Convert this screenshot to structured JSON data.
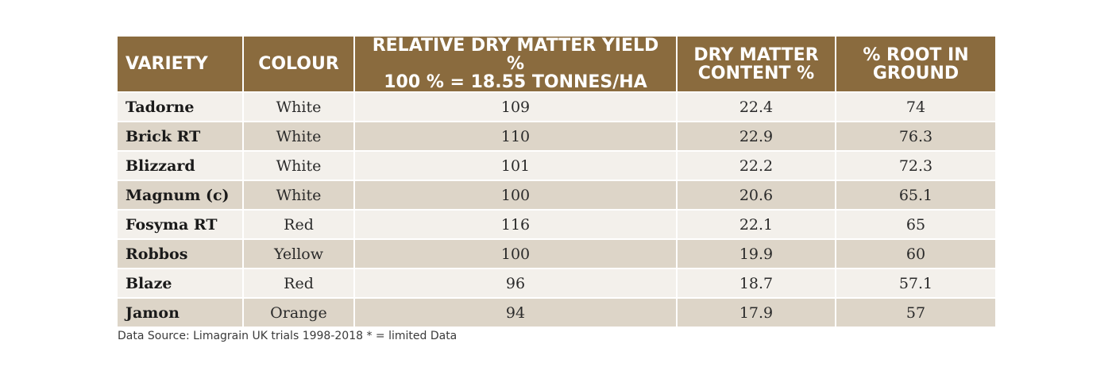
{
  "table": {
    "headers": {
      "variety": "VARIETY",
      "colour": "COLOUR",
      "yield_line1": "RELATIVE DRY MATTER YIELD %",
      "yield_line2": "100 % = 18.55 TONNES/HA",
      "dm_line1": "DRY MATTER",
      "dm_line2": "CONTENT %",
      "root_line1": "% ROOT IN",
      "root_line2": "GROUND"
    },
    "rows": [
      {
        "variety": "Tadorne",
        "colour": "White",
        "yield": "109",
        "dm": "22.4",
        "root": "74"
      },
      {
        "variety": "Brick RT",
        "colour": "White",
        "yield": "110",
        "dm": "22.9",
        "root": "76.3"
      },
      {
        "variety": "Blizzard",
        "colour": "White",
        "yield": "101",
        "dm": "22.2",
        "root": "72.3"
      },
      {
        "variety": "Magnum (c)",
        "colour": "White",
        "yield": "100",
        "dm": "20.6",
        "root": "65.1"
      },
      {
        "variety": "Fosyma RT",
        "colour": "Red",
        "yield": "116",
        "dm": "22.1",
        "root": "65"
      },
      {
        "variety": "Robbos",
        "colour": "Yellow",
        "yield": "100",
        "dm": "19.9",
        "root": "60"
      },
      {
        "variety": "Blaze",
        "colour": "Red",
        "yield": "96",
        "dm": "18.7",
        "root": "57.1"
      },
      {
        "variety": "Jamon",
        "colour": "Orange",
        "yield": "94",
        "dm": "17.9",
        "root": "57"
      }
    ]
  },
  "footnote": "Data Source: Limagrain UK trials 1998-2018 * = limited Data",
  "colors": {
    "header_bg": "#8a6b3e",
    "row_light": "#f3f0eb",
    "row_dark": "#ddd5c8"
  }
}
